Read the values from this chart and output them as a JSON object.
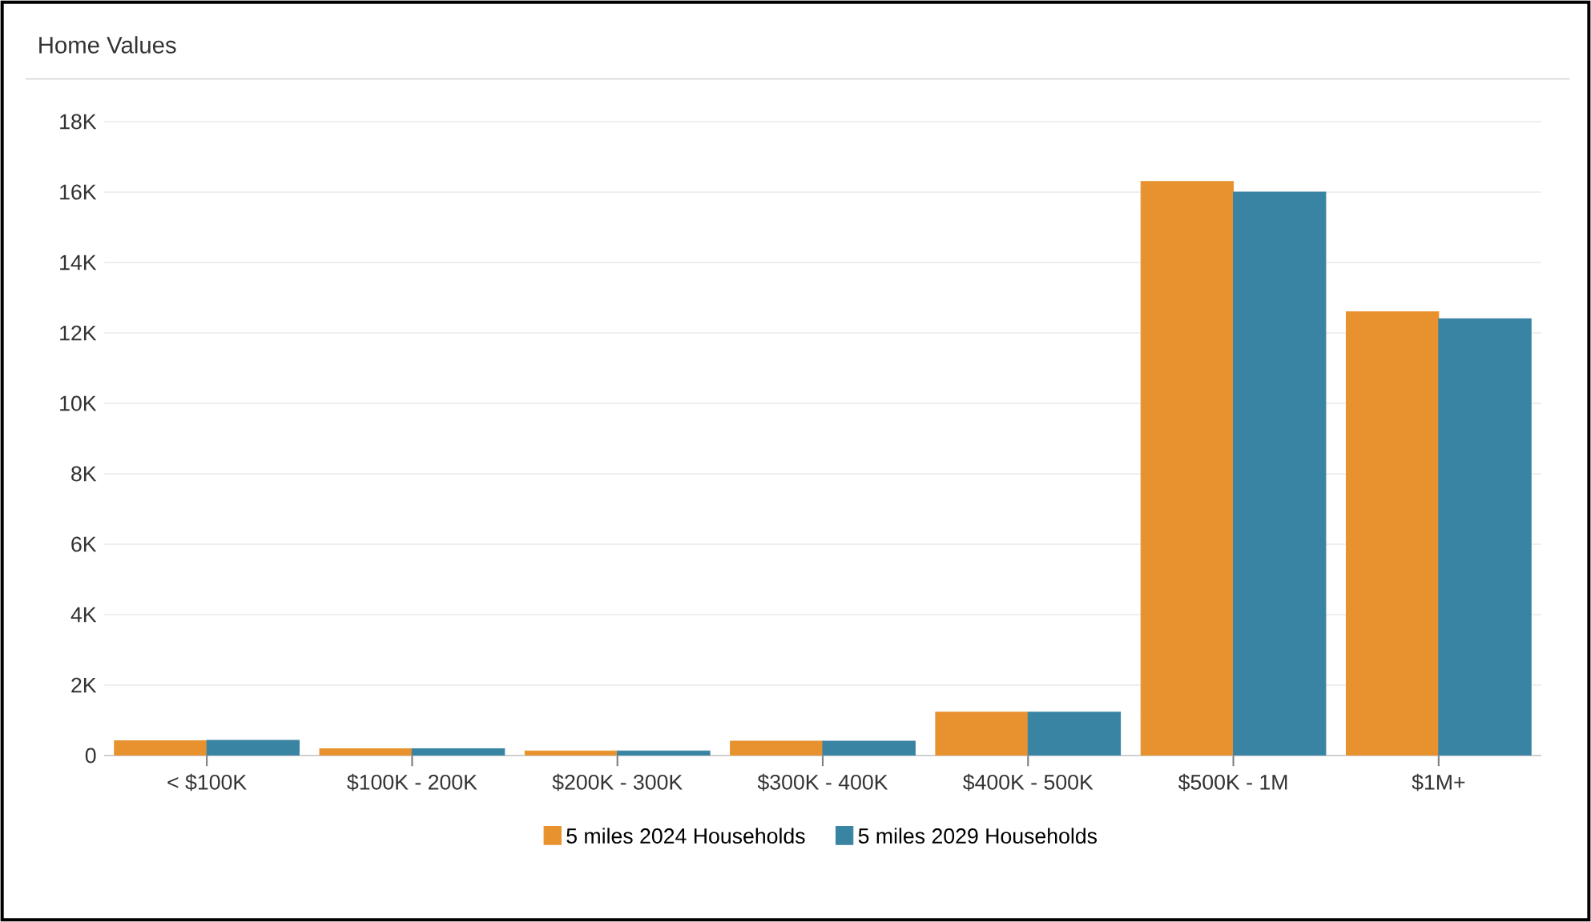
{
  "chart_data": {
    "type": "bar",
    "title": "Home Values",
    "categories": [
      "< $100K",
      "$100K - 200K",
      "$200K - 300K",
      "$300K - 400K",
      "$400K - 500K",
      "$500K - 1M",
      "$1M+"
    ],
    "series": [
      {
        "name": "5 miles 2024 Households",
        "color": "#e8922f",
        "values": [
          420,
          190,
          130,
          410,
          1230,
          16300,
          12600
        ]
      },
      {
        "name": "5 miles 2029 Households",
        "color": "#3a84a3",
        "values": [
          430,
          190,
          130,
          410,
          1230,
          16000,
          12400
        ]
      }
    ],
    "ylim": [
      0,
      18000
    ],
    "yticks": [
      0,
      {
        "value": 2000,
        "label": "2K"
      },
      {
        "value": 4000,
        "label": "4K"
      },
      {
        "value": 6000,
        "label": "6K"
      },
      {
        "value": 8000,
        "label": "8K"
      },
      {
        "value": 10000,
        "label": "10K"
      },
      {
        "value": 12000,
        "label": "12K"
      },
      {
        "value": 14000,
        "label": "14K"
      },
      {
        "value": 16000,
        "label": "16K"
      },
      {
        "value": 18000,
        "label": "18K"
      }
    ],
    "grid": "y",
    "legend": "bottom"
  }
}
